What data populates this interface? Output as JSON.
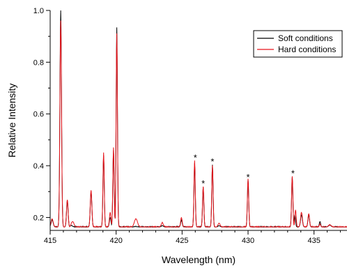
{
  "chart_data": {
    "type": "line",
    "xlabel": "Wavelength (nm)",
    "ylabel": "Relative Intensity",
    "xlim": [
      415,
      437.5
    ],
    "ylim": [
      0.15,
      1.0
    ],
    "x_ticks": [
      415,
      420,
      425,
      430,
      435
    ],
    "y_ticks": [
      0.2,
      0.4,
      0.6,
      0.8,
      1.0
    ],
    "x_tick_labels": [
      "415",
      "420",
      "425",
      "430",
      "435"
    ],
    "y_tick_labels": [
      "0.2",
      "0.4",
      "0.6",
      "0.8",
      "1.0"
    ],
    "grid": false,
    "legend_position": "top-right",
    "baseline": 0.163,
    "annotations": [
      {
        "text": "*",
        "x": 426.0,
        "y": 0.435
      },
      {
        "text": "*",
        "x": 426.6,
        "y": 0.335
      },
      {
        "text": "*",
        "x": 427.3,
        "y": 0.42
      },
      {
        "text": "*",
        "x": 430.0,
        "y": 0.36
      },
      {
        "text": "*",
        "x": 433.4,
        "y": 0.375
      }
    ],
    "series": [
      {
        "name": "Soft conditions",
        "color": "#000000",
        "peaks": [
          [
            415.15,
            0.19,
            0.08
          ],
          [
            415.8,
            1.0,
            0.06
          ],
          [
            416.3,
            0.265,
            0.06
          ],
          [
            416.6,
            0.17,
            0.08
          ],
          [
            418.1,
            0.3,
            0.06
          ],
          [
            419.05,
            0.44,
            0.05
          ],
          [
            419.55,
            0.2,
            0.06
          ],
          [
            419.8,
            0.46,
            0.05
          ],
          [
            420.05,
            0.935,
            0.05
          ],
          [
            421.5,
            0.165,
            0.1
          ],
          [
            423.5,
            0.168,
            0.08
          ],
          [
            424.95,
            0.19,
            0.06
          ],
          [
            425.95,
            0.41,
            0.05
          ],
          [
            426.6,
            0.315,
            0.05
          ],
          [
            427.3,
            0.405,
            0.05
          ],
          [
            427.8,
            0.168,
            0.08
          ],
          [
            430.0,
            0.345,
            0.05
          ],
          [
            433.35,
            0.355,
            0.05
          ],
          [
            433.55,
            0.21,
            0.05
          ],
          [
            434.05,
            0.21,
            0.07
          ],
          [
            434.6,
            0.21,
            0.06
          ],
          [
            435.45,
            0.185,
            0.05
          ],
          [
            436.2,
            0.17,
            0.1
          ]
        ]
      },
      {
        "name": "Hard conditions",
        "color": "#e8141b",
        "peaks": [
          [
            415.15,
            0.195,
            0.08
          ],
          [
            415.8,
            0.96,
            0.06
          ],
          [
            416.3,
            0.27,
            0.06
          ],
          [
            416.7,
            0.185,
            0.1
          ],
          [
            418.1,
            0.305,
            0.06
          ],
          [
            419.05,
            0.45,
            0.05
          ],
          [
            419.55,
            0.22,
            0.06
          ],
          [
            419.8,
            0.47,
            0.05
          ],
          [
            420.05,
            0.91,
            0.05
          ],
          [
            421.5,
            0.195,
            0.12
          ],
          [
            423.5,
            0.18,
            0.08
          ],
          [
            424.95,
            0.2,
            0.06
          ],
          [
            425.95,
            0.42,
            0.05
          ],
          [
            426.6,
            0.32,
            0.05
          ],
          [
            427.3,
            0.4,
            0.05
          ],
          [
            427.8,
            0.178,
            0.08
          ],
          [
            430.0,
            0.35,
            0.05
          ],
          [
            433.35,
            0.36,
            0.05
          ],
          [
            433.6,
            0.23,
            0.05
          ],
          [
            434.05,
            0.22,
            0.07
          ],
          [
            434.6,
            0.215,
            0.06
          ],
          [
            435.45,
            0.175,
            0.05
          ],
          [
            436.2,
            0.172,
            0.1
          ]
        ]
      }
    ]
  }
}
